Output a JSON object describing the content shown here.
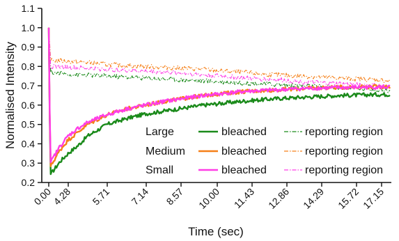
{
  "chart_data": {
    "type": "line",
    "xlabel": "Time (sec)",
    "ylabel": "Normalised Intensity",
    "x_tick_labels": [
      "0.00",
      "4.28",
      "5.71",
      "7.14",
      "8.57",
      "10.00",
      "11.43",
      "12.86",
      "14.29",
      "15.72",
      "17.15"
    ],
    "y_tick_labels": [
      "0.2",
      "0.3",
      "0.4",
      "0.5",
      "0.6",
      "0.7",
      "0.8",
      "0.9",
      "1.0",
      "1.1"
    ],
    "ylim": [
      0.2,
      1.1
    ],
    "grid": false,
    "legend_position": "bottom-right",
    "legend": {
      "rows": [
        "Large",
        "Medium",
        "Small"
      ],
      "bleached_label": "bleached",
      "reporting_label": "reporting region"
    },
    "series": [
      {
        "name": "Large bleached",
        "group": "Large",
        "kind": "bleached",
        "color": "#1a8a1a",
        "style": "solid",
        "x": [
          0,
          0.08,
          0.3,
          0.6,
          1,
          1.5,
          2,
          3,
          4,
          5,
          6,
          7,
          8,
          9,
          10,
          11,
          12,
          13,
          14,
          15,
          16,
          17,
          17.6
        ],
        "y": [
          1.0,
          0.24,
          0.27,
          0.31,
          0.35,
          0.39,
          0.44,
          0.5,
          0.53,
          0.555,
          0.57,
          0.585,
          0.6,
          0.61,
          0.62,
          0.628,
          0.635,
          0.64,
          0.645,
          0.65,
          0.652,
          0.655,
          0.655
        ]
      },
      {
        "name": "Medium bleached",
        "group": "Medium",
        "kind": "bleached",
        "color": "#f57f17",
        "style": "solid",
        "x": [
          0,
          0.08,
          0.3,
          0.6,
          1,
          1.5,
          2,
          3,
          4,
          5,
          6,
          7,
          8,
          9,
          10,
          11,
          12,
          13,
          14,
          15,
          16,
          17,
          17.6
        ],
        "y": [
          1.0,
          0.28,
          0.32,
          0.37,
          0.42,
          0.46,
          0.5,
          0.55,
          0.58,
          0.6,
          0.62,
          0.635,
          0.65,
          0.66,
          0.67,
          0.675,
          0.68,
          0.685,
          0.69,
          0.692,
          0.695,
          0.695,
          0.695
        ]
      },
      {
        "name": "Small bleached",
        "group": "Small",
        "kind": "bleached",
        "color": "#ff3de6",
        "style": "solid",
        "x": [
          0,
          0.08,
          0.3,
          0.6,
          1,
          1.5,
          2,
          3,
          4,
          5,
          6,
          7,
          8,
          9,
          10,
          11,
          12,
          13,
          14,
          15,
          16,
          17,
          17.6
        ],
        "y": [
          1.0,
          0.3,
          0.34,
          0.39,
          0.44,
          0.48,
          0.51,
          0.55,
          0.58,
          0.6,
          0.62,
          0.635,
          0.65,
          0.66,
          0.67,
          0.675,
          0.68,
          0.685,
          0.688,
          0.69,
          0.692,
          0.693,
          0.693
        ]
      },
      {
        "name": "Large reporting region",
        "group": "Large",
        "kind": "reporting",
        "color": "#1a8a1a",
        "style": "dashdot",
        "x": [
          0,
          0.1,
          0.5,
          1,
          2,
          3,
          4,
          5,
          6,
          7,
          8,
          9,
          10,
          11,
          12,
          13,
          14,
          15,
          16,
          17,
          17.6
        ],
        "y": [
          1.0,
          0.77,
          0.765,
          0.76,
          0.755,
          0.75,
          0.745,
          0.74,
          0.735,
          0.73,
          0.725,
          0.72,
          0.715,
          0.71,
          0.705,
          0.7,
          0.695,
          0.69,
          0.685,
          0.68,
          0.675
        ]
      },
      {
        "name": "Medium reporting region",
        "group": "Medium",
        "kind": "reporting",
        "color": "#f57f17",
        "style": "dashdot",
        "x": [
          0,
          0.1,
          0.5,
          1,
          2,
          3,
          4,
          5,
          6,
          7,
          8,
          9,
          10,
          11,
          12,
          13,
          14,
          15,
          16,
          17,
          17.6
        ],
        "y": [
          1.0,
          0.83,
          0.83,
          0.825,
          0.82,
          0.81,
          0.805,
          0.8,
          0.795,
          0.79,
          0.785,
          0.775,
          0.77,
          0.76,
          0.755,
          0.75,
          0.745,
          0.74,
          0.735,
          0.73,
          0.725
        ]
      },
      {
        "name": "Small reporting region",
        "group": "Small",
        "kind": "reporting",
        "color": "#ff3de6",
        "style": "dashdot",
        "x": [
          0,
          0.1,
          0.5,
          1,
          2,
          3,
          4,
          5,
          6,
          7,
          8,
          9,
          10,
          11,
          12,
          13,
          14,
          15,
          16,
          17,
          17.6
        ],
        "y": [
          1.0,
          0.8,
          0.8,
          0.795,
          0.79,
          0.785,
          0.78,
          0.775,
          0.77,
          0.765,
          0.755,
          0.75,
          0.74,
          0.735,
          0.73,
          0.72,
          0.715,
          0.71,
          0.705,
          0.7,
          0.695
        ]
      }
    ]
  }
}
